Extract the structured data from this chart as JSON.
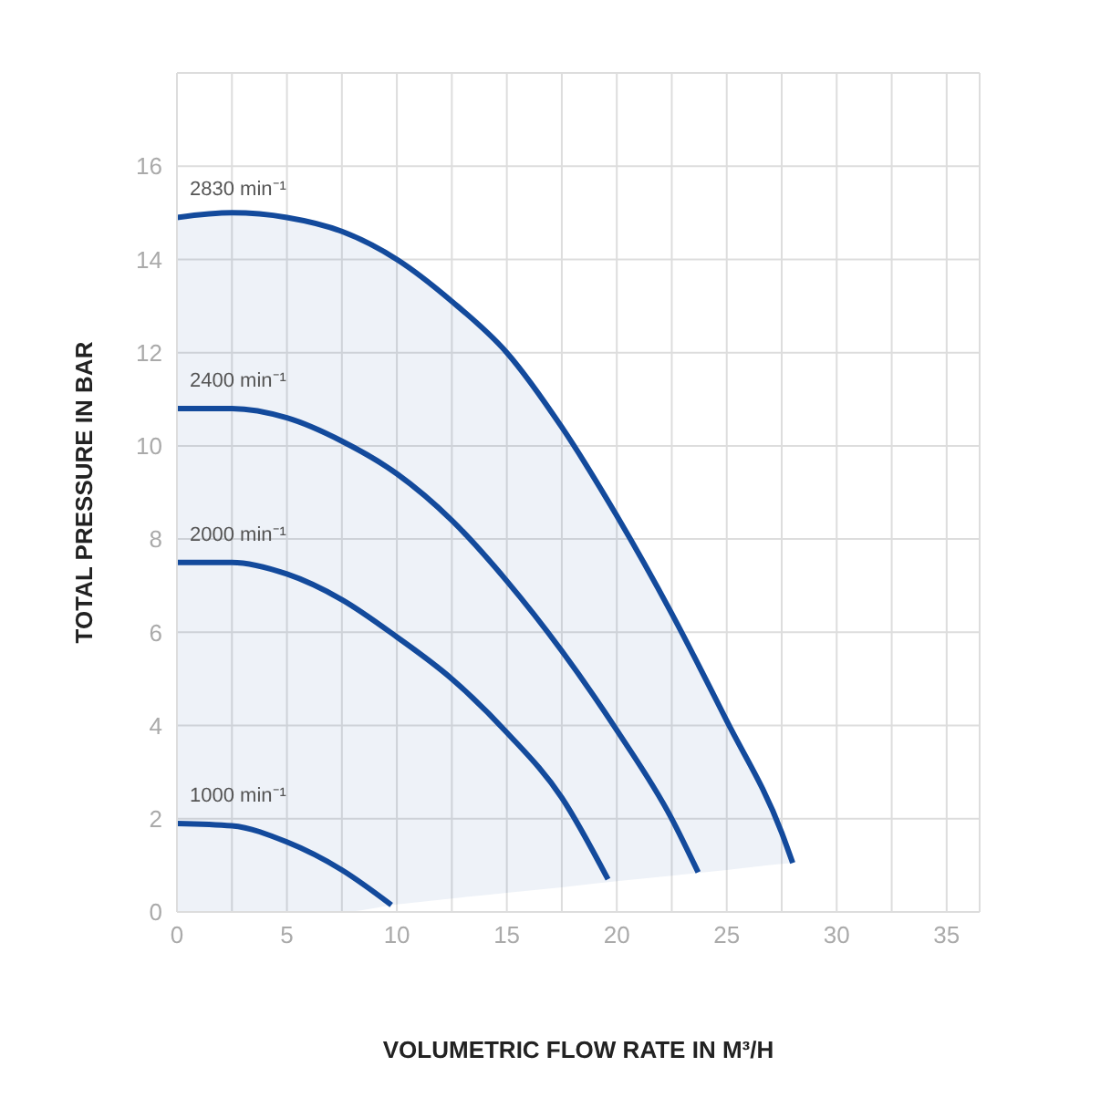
{
  "chart_data": {
    "type": "line",
    "xlabel": "VOLUMETRIC FLOW RATE IN M³/H",
    "ylabel": "TOTAL PRESSURE IN BAR",
    "xlim": [
      0,
      36.5
    ],
    "ylim": [
      0,
      18
    ],
    "xticks": [
      0,
      {
        "value": 2.5,
        "label": null
      },
      5,
      {
        "value": 7.5,
        "label": null
      },
      10,
      {
        "value": 12.5,
        "label": null
      },
      15,
      {
        "value": 17.5,
        "label": null
      },
      20,
      {
        "value": 22.5,
        "label": null
      },
      25,
      {
        "value": 27.5,
        "label": null
      },
      30,
      {
        "value": 32.5,
        "label": null
      },
      35
    ],
    "yticks": [
      0,
      2,
      4,
      6,
      8,
      10,
      12,
      14,
      16,
      {
        "value": 18,
        "label": null
      }
    ],
    "grid": true,
    "marker": "none",
    "line_style": "solid",
    "series": [
      {
        "name": "2830 min⁻¹",
        "color": "#134a9c",
        "x": [
          0,
          2.5,
          5,
          7.5,
          10,
          12.5,
          15,
          17.5,
          20,
          22.5,
          25,
          27.5,
          28
        ],
        "values": [
          14.9,
          15.0,
          14.9,
          14.6,
          14.0,
          13.1,
          12.0,
          10.4,
          8.5,
          6.4,
          4.1,
          1.7,
          1.05
        ],
        "lower": [
          0,
          0,
          0,
          0,
          0.16,
          0.29,
          0.41,
          0.53,
          0.66,
          0.78,
          0.9,
          1.03,
          1.05
        ],
        "upper": [
          14.9,
          15.0,
          14.9,
          14.6,
          14.0,
          13.1,
          12.0,
          10.4,
          8.5,
          6.4,
          4.1,
          1.7,
          1.05
        ]
      },
      {
        "name": "2400 min⁻¹",
        "color": "#134a9c",
        "x": [
          0,
          2.5,
          5,
          7.5,
          10,
          12.5,
          15,
          17.5,
          20,
          22.5,
          23.7
        ],
        "values": [
          10.8,
          10.8,
          10.6,
          10.1,
          9.4,
          8.4,
          7.1,
          5.6,
          3.9,
          2.0,
          0.85
        ]
      },
      {
        "name": "2000 min⁻¹",
        "color": "#134a9c",
        "x": [
          0,
          2.5,
          5,
          7.5,
          10,
          12.5,
          15,
          17.5,
          19.6
        ],
        "values": [
          7.5,
          7.5,
          7.25,
          6.7,
          5.9,
          5.0,
          3.85,
          2.45,
          0.7
        ]
      },
      {
        "name": "1000 min⁻¹",
        "color": "#134a9c",
        "x": [
          0,
          2.5,
          5,
          7.5,
          9.75
        ],
        "values": [
          1.9,
          1.85,
          1.5,
          0.9,
          0.15
        ]
      }
    ]
  }
}
